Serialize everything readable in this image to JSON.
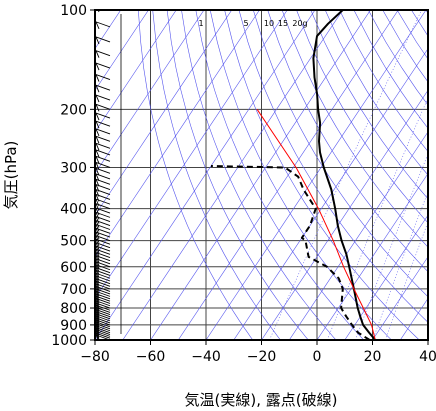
{
  "chart_data": {
    "type": "skew-t",
    "xlabel": "気温(実線), 露点(破線)",
    "ylabel": "気圧(hPa)",
    "xlim": [
      -80,
      40
    ],
    "ylim": [
      1000,
      100
    ],
    "y_scale": "log",
    "x_ticks": [
      -80,
      -60,
      -40,
      -20,
      0,
      20,
      40
    ],
    "x_tick_labels": [
      "−80",
      "−60",
      "−40",
      "−20",
      "0",
      "20",
      "40"
    ],
    "y_ticks": [
      100,
      200,
      300,
      400,
      500,
      600,
      700,
      800,
      900,
      1000
    ],
    "y_tick_labels": [
      "100",
      "200",
      "300",
      "400",
      "500",
      "600",
      "700",
      "800",
      "900",
      "1000"
    ],
    "mixing_ratio_labels": [
      "1",
      "5",
      "10",
      "15",
      "20g"
    ],
    "grid": true,
    "series": [
      {
        "style": "solid",
        "color": "#000000",
        "points": [
          [
            1000,
            21
          ],
          [
            950,
            17
          ],
          [
            900,
            13
          ],
          [
            850,
            10
          ],
          [
            800,
            7
          ],
          [
            700,
            1
          ],
          [
            600,
            -6
          ],
          [
            550,
            -10
          ],
          [
            500,
            -15
          ],
          [
            450,
            -20
          ],
          [
            400,
            -25
          ],
          [
            350,
            -31
          ],
          [
            300,
            -39
          ],
          [
            270,
            -44
          ],
          [
            250,
            -47
          ],
          [
            220,
            -51
          ],
          [
            200,
            -55
          ],
          [
            180,
            -59
          ],
          [
            160,
            -64
          ],
          [
            140,
            -69
          ],
          [
            120,
            -73
          ],
          [
            110,
            -72
          ],
          [
            100,
            -70
          ]
        ]
      },
      {
        "style": "dashed",
        "color": "#000000",
        "points": [
          [
            1000,
            19
          ],
          [
            950,
            13
          ],
          [
            900,
            9
          ],
          [
            850,
            5
          ],
          [
            800,
            1
          ],
          [
            700,
            -3
          ],
          [
            650,
            -7
          ],
          [
            600,
            -14
          ],
          [
            560,
            -23
          ],
          [
            500,
            -28
          ],
          [
            490,
            -30
          ],
          [
            450,
            -30
          ],
          [
            400,
            -32
          ],
          [
            350,
            -41
          ],
          [
            320,
            -46
          ],
          [
            300,
            -53
          ],
          [
            297,
            -80
          ]
        ]
      },
      {
        "style": "solid",
        "color": "#ff0000",
        "points": [
          [
            1000,
            21
          ],
          [
            900,
            16
          ],
          [
            800,
            9
          ],
          [
            700,
            1
          ],
          [
            600,
            -8
          ],
          [
            500,
            -18
          ],
          [
            400,
            -31
          ],
          [
            300,
            -49
          ],
          [
            200,
            -77
          ]
        ]
      }
    ]
  }
}
